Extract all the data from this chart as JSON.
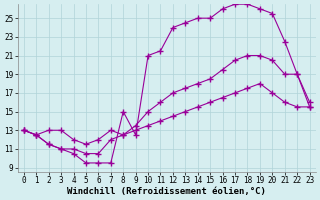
{
  "bg_color": "#d6eef0",
  "grid_color": "#b0d4d8",
  "line_color": "#990099",
  "marker": "+",
  "markersize": 4,
  "markeredgewidth": 1.0,
  "linewidth": 0.8,
  "xlabel": "Windchill (Refroidissement éolien,°C)",
  "xlabel_fontsize": 6.5,
  "xlim": [
    -0.5,
    23.5
  ],
  "ylim": [
    8.5,
    26.5
  ],
  "yticks": [
    9,
    11,
    13,
    15,
    17,
    19,
    21,
    23,
    25
  ],
  "xticks": [
    0,
    1,
    2,
    3,
    4,
    5,
    6,
    7,
    8,
    9,
    10,
    11,
    12,
    13,
    14,
    15,
    16,
    17,
    18,
    19,
    20,
    21,
    22,
    23
  ],
  "tick_fontsize": 5.5,
  "series": [
    {
      "x": [
        0,
        1,
        2,
        3,
        4,
        5,
        6,
        7,
        8,
        9,
        10,
        11,
        12,
        13,
        14,
        15,
        16,
        17,
        18,
        19,
        20,
        21,
        22,
        23
      ],
      "y": [
        13,
        12.5,
        11.5,
        11,
        10.5,
        9.5,
        9.5,
        9.5,
        15,
        12.5,
        21,
        21.5,
        24,
        24.5,
        25,
        25,
        26,
        26.5,
        26.5,
        26,
        25.5,
        22.5,
        19,
        15.5
      ]
    },
    {
      "x": [
        0,
        1,
        2,
        3,
        4,
        5,
        6,
        7,
        8,
        9,
        10,
        11,
        12,
        13,
        14,
        15,
        16,
        17,
        18,
        19,
        20,
        21,
        22,
        23
      ],
      "y": [
        13,
        12.5,
        13,
        13,
        12,
        11.5,
        12,
        13,
        12.5,
        13.5,
        15,
        16,
        17,
        17.5,
        18,
        18.5,
        19.5,
        20.5,
        21,
        21,
        20.5,
        19,
        19,
        16
      ]
    },
    {
      "x": [
        0,
        1,
        2,
        3,
        4,
        5,
        6,
        7,
        8,
        9,
        10,
        11,
        12,
        13,
        14,
        15,
        16,
        17,
        18,
        19,
        20,
        21,
        22,
        23
      ],
      "y": [
        13,
        12.5,
        11.5,
        11,
        11,
        10.5,
        10.5,
        12,
        12.5,
        13,
        13.5,
        14,
        14.5,
        15,
        15.5,
        16,
        16.5,
        17,
        17.5,
        18,
        17,
        16,
        15.5,
        15.5
      ]
    }
  ]
}
